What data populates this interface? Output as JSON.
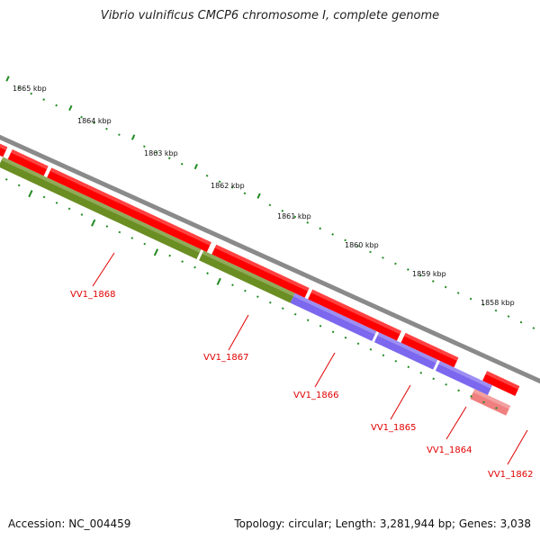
{
  "title": "Vibrio vulnificus CMCP6 chromosome I, complete genome",
  "footer": {
    "accession": "Accession: NC_004459",
    "stats": "Topology: circular; Length: 3,281,944 bp; Genes: 3,038"
  },
  "colors": {
    "backbone": "#8a8a8a",
    "cds_red": "#ff0000",
    "cds_red_light": "#f08080",
    "cds_green": "#6b8e23",
    "cds_blue": "#7b68ee",
    "tick": "#228b22",
    "label": "#e00000"
  },
  "ruler": [
    "1865 kbp",
    "1864 kbp",
    "1863 kbp",
    "1862 kbp",
    "1861 kbp",
    "1860 kbp",
    "1859 kbp",
    "1858 kbp"
  ],
  "genes": [
    "VV1_1868",
    "VV1_1867",
    "VV1_1866",
    "VV1_1865",
    "VV1_1864",
    "VV1_1862"
  ]
}
